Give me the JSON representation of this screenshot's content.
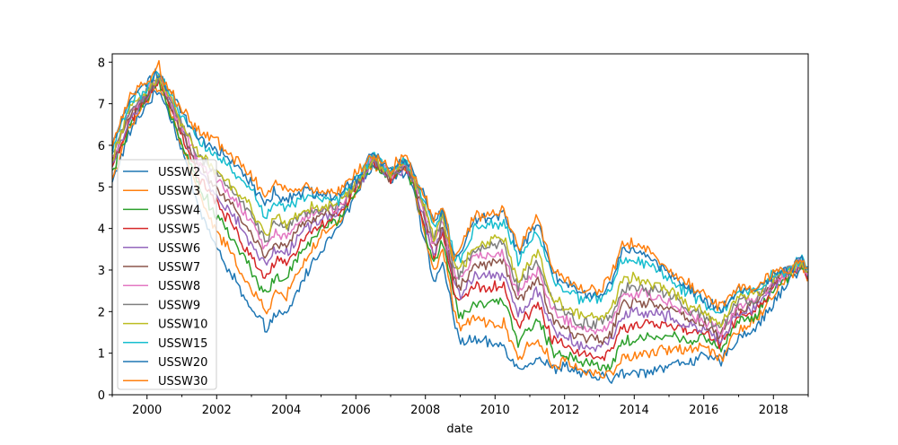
{
  "chart_data": {
    "type": "line",
    "title": "",
    "xlabel": "date",
    "ylabel": "",
    "xlim": [
      "1999-01-01",
      "2019-01-01"
    ],
    "ylim": [
      0,
      8.2
    ],
    "x_ticks": [
      "2000",
      "2002",
      "2004",
      "2006",
      "2008",
      "2010",
      "2012",
      "2014",
      "2016",
      "2018"
    ],
    "y_ticks": [
      "0",
      "1",
      "2",
      "3",
      "4",
      "5",
      "6",
      "7",
      "8"
    ],
    "legend_position": "lower-left",
    "grid": false,
    "x": [
      "1999-01-01",
      "1999-07-01",
      "2000-01-01",
      "2000-05-01",
      "2000-07-01",
      "2001-01-01",
      "2001-07-01",
      "2002-01-01",
      "2002-07-01",
      "2003-01-01",
      "2003-06-01",
      "2003-09-01",
      "2004-01-01",
      "2004-07-01",
      "2005-01-01",
      "2005-07-01",
      "2006-01-01",
      "2006-07-01",
      "2007-01-01",
      "2007-06-01",
      "2007-09-01",
      "2008-01-01",
      "2008-04-01",
      "2008-07-01",
      "2008-11-01",
      "2009-01-01",
      "2009-06-01",
      "2010-01-01",
      "2010-04-01",
      "2010-09-01",
      "2011-01-01",
      "2011-04-01",
      "2011-09-01",
      "2012-01-01",
      "2012-07-01",
      "2013-01-01",
      "2013-05-01",
      "2013-09-01",
      "2014-01-01",
      "2014-07-01",
      "2015-01-01",
      "2015-07-01",
      "2016-01-01",
      "2016-07-01",
      "2017-01-01",
      "2017-07-01",
      "2018-01-01",
      "2018-07-01",
      "2018-11-01",
      "2019-01-01"
    ],
    "series": [
      {
        "name": "USSW2",
        "color": "#1f77b4",
        "values": [
          5.1,
          6.3,
          7.0,
          7.3,
          7.1,
          5.9,
          4.5,
          3.5,
          2.8,
          2.0,
          1.6,
          1.9,
          1.9,
          2.8,
          3.5,
          4.0,
          4.8,
          5.6,
          5.2,
          5.4,
          5.0,
          3.6,
          2.7,
          3.2,
          1.7,
          1.3,
          1.3,
          1.2,
          1.2,
          0.6,
          0.8,
          0.9,
          0.6,
          0.7,
          0.5,
          0.4,
          0.4,
          0.5,
          0.5,
          0.6,
          0.7,
          0.8,
          0.9,
          0.8,
          1.4,
          1.6,
          2.2,
          2.8,
          3.1,
          2.7
        ]
      },
      {
        "name": "USSW3",
        "color": "#ff7f0e",
        "values": [
          5.2,
          6.4,
          7.1,
          7.4,
          7.2,
          6.0,
          4.8,
          3.9,
          3.3,
          2.5,
          2.0,
          2.4,
          2.4,
          3.2,
          3.8,
          4.1,
          4.9,
          5.6,
          5.2,
          5.5,
          5.0,
          3.8,
          2.9,
          3.5,
          2.0,
          1.6,
          1.8,
          1.7,
          1.7,
          0.9,
          1.2,
          1.3,
          0.7,
          0.8,
          0.6,
          0.5,
          0.5,
          0.9,
          0.9,
          1.0,
          1.1,
          1.1,
          1.2,
          0.9,
          1.6,
          1.8,
          2.4,
          2.9,
          3.1,
          2.7
        ]
      },
      {
        "name": "USSW4",
        "color": "#2ca02c",
        "values": [
          5.3,
          6.5,
          7.1,
          7.5,
          7.2,
          6.1,
          5.0,
          4.3,
          3.7,
          3.0,
          2.4,
          2.8,
          2.8,
          3.5,
          4.0,
          4.2,
          4.9,
          5.6,
          5.2,
          5.5,
          5.0,
          3.9,
          3.1,
          3.7,
          2.3,
          1.9,
          2.2,
          2.2,
          2.2,
          1.3,
          1.6,
          1.8,
          1.0,
          1.0,
          0.8,
          0.7,
          0.7,
          1.3,
          1.3,
          1.4,
          1.4,
          1.3,
          1.4,
          1.1,
          1.8,
          1.9,
          2.5,
          2.9,
          3.1,
          2.7
        ]
      },
      {
        "name": "USSW5",
        "color": "#d62728",
        "values": [
          5.4,
          6.6,
          7.2,
          7.5,
          7.3,
          6.2,
          5.2,
          4.6,
          4.0,
          3.3,
          2.8,
          3.2,
          3.1,
          3.8,
          4.1,
          4.3,
          5.0,
          5.6,
          5.2,
          5.5,
          5.1,
          4.0,
          3.3,
          3.9,
          2.5,
          2.2,
          2.6,
          2.6,
          2.6,
          1.6,
          2.0,
          2.2,
          1.3,
          1.2,
          1.0,
          0.9,
          1.0,
          1.6,
          1.7,
          1.7,
          1.7,
          1.5,
          1.5,
          1.2,
          1.9,
          2.0,
          2.6,
          3.0,
          3.1,
          2.7
        ]
      },
      {
        "name": "USSW6",
        "color": "#9467bd",
        "values": [
          5.5,
          6.6,
          7.2,
          7.6,
          7.3,
          6.3,
          5.4,
          4.8,
          4.3,
          3.6,
          3.1,
          3.5,
          3.4,
          4.0,
          4.2,
          4.4,
          5.0,
          5.6,
          5.2,
          5.5,
          5.1,
          4.1,
          3.4,
          4.0,
          2.7,
          2.4,
          2.9,
          2.9,
          2.9,
          1.9,
          2.3,
          2.5,
          1.6,
          1.4,
          1.2,
          1.1,
          1.3,
          1.9,
          2.0,
          2.0,
          1.9,
          1.7,
          1.6,
          1.3,
          2.0,
          2.1,
          2.6,
          3.0,
          3.2,
          2.8
        ]
      },
      {
        "name": "USSW7",
        "color": "#8c564b",
        "values": [
          5.6,
          6.7,
          7.2,
          7.6,
          7.3,
          6.3,
          5.5,
          5.0,
          4.5,
          3.9,
          3.3,
          3.7,
          3.6,
          4.1,
          4.3,
          4.5,
          5.0,
          5.7,
          5.2,
          5.6,
          5.1,
          4.2,
          3.5,
          4.1,
          2.8,
          2.6,
          3.1,
          3.2,
          3.2,
          2.2,
          2.6,
          2.8,
          1.8,
          1.6,
          1.4,
          1.3,
          1.5,
          2.2,
          2.2,
          2.2,
          2.1,
          1.9,
          1.7,
          1.4,
          2.1,
          2.2,
          2.7,
          3.0,
          3.2,
          2.8
        ]
      },
      {
        "name": "USSW8",
        "color": "#e377c2",
        "values": [
          5.6,
          6.8,
          7.3,
          7.7,
          7.4,
          6.4,
          5.6,
          5.2,
          4.7,
          4.1,
          3.5,
          3.9,
          3.8,
          4.3,
          4.4,
          4.5,
          5.1,
          5.7,
          5.3,
          5.6,
          5.2,
          4.3,
          3.6,
          4.2,
          2.9,
          2.8,
          3.3,
          3.4,
          3.4,
          2.4,
          2.8,
          3.0,
          2.0,
          1.8,
          1.6,
          1.5,
          1.7,
          2.4,
          2.4,
          2.4,
          2.2,
          2.0,
          1.8,
          1.5,
          2.2,
          2.3,
          2.7,
          3.0,
          3.2,
          2.8
        ]
      },
      {
        "name": "USSW9",
        "color": "#7f7f7f",
        "values": [
          5.7,
          6.8,
          7.3,
          7.7,
          7.4,
          6.5,
          5.7,
          5.3,
          4.9,
          4.3,
          3.7,
          4.1,
          4.0,
          4.4,
          4.4,
          4.6,
          5.1,
          5.7,
          5.3,
          5.6,
          5.2,
          4.4,
          3.7,
          4.3,
          3.0,
          2.9,
          3.5,
          3.6,
          3.6,
          2.6,
          3.0,
          3.2,
          2.2,
          2.0,
          1.7,
          1.7,
          1.9,
          2.6,
          2.6,
          2.5,
          2.4,
          2.1,
          1.9,
          1.6,
          2.3,
          2.3,
          2.8,
          3.0,
          3.2,
          2.8
        ]
      },
      {
        "name": "USSW10",
        "color": "#bcbd22",
        "values": [
          5.7,
          6.9,
          7.3,
          7.7,
          7.4,
          6.5,
          5.8,
          5.4,
          5.0,
          4.5,
          3.8,
          4.3,
          4.1,
          4.5,
          4.5,
          4.6,
          5.1,
          5.7,
          5.3,
          5.6,
          5.2,
          4.5,
          3.8,
          4.3,
          3.1,
          3.0,
          3.6,
          3.7,
          3.8,
          2.7,
          3.2,
          3.4,
          2.3,
          2.1,
          1.9,
          1.8,
          2.0,
          2.8,
          2.8,
          2.7,
          2.5,
          2.2,
          2.0,
          1.7,
          2.4,
          2.4,
          2.8,
          3.0,
          3.2,
          2.8
        ]
      },
      {
        "name": "USSW15",
        "color": "#17becf",
        "values": [
          5.9,
          7.0,
          7.4,
          7.8,
          7.5,
          6.7,
          6.1,
          5.8,
          5.4,
          4.9,
          4.3,
          4.7,
          4.5,
          4.8,
          4.7,
          4.7,
          5.2,
          5.8,
          5.4,
          5.7,
          5.3,
          4.6,
          4.0,
          4.5,
          3.3,
          3.3,
          4.0,
          4.1,
          4.2,
          3.2,
          3.7,
          3.9,
          2.8,
          2.5,
          2.3,
          2.3,
          2.5,
          3.3,
          3.3,
          3.1,
          2.8,
          2.5,
          2.2,
          1.9,
          2.5,
          2.5,
          2.9,
          3.0,
          3.3,
          2.9
        ]
      },
      {
        "name": "USSW20",
        "color": "#1f77b4",
        "values": [
          6.0,
          7.1,
          7.5,
          7.8,
          7.5,
          6.8,
          6.2,
          5.9,
          5.6,
          5.1,
          4.5,
          4.9,
          4.7,
          4.9,
          4.8,
          4.8,
          5.2,
          5.8,
          5.4,
          5.7,
          5.3,
          4.7,
          4.1,
          4.5,
          3.3,
          3.4,
          4.2,
          4.3,
          4.4,
          3.4,
          3.9,
          4.1,
          2.9,
          2.7,
          2.4,
          2.4,
          2.7,
          3.5,
          3.5,
          3.3,
          2.9,
          2.6,
          2.3,
          2.0,
          2.6,
          2.5,
          2.9,
          3.0,
          3.3,
          2.9
        ]
      },
      {
        "name": "USSW30",
        "color": "#ff7f0e",
        "values": [
          6.0,
          7.2,
          7.5,
          7.9,
          7.5,
          6.9,
          6.3,
          6.1,
          5.7,
          5.3,
          4.7,
          5.1,
          4.9,
          5.0,
          4.9,
          4.9,
          5.3,
          5.8,
          5.4,
          5.8,
          5.3,
          4.7,
          4.2,
          4.6,
          3.2,
          3.5,
          4.3,
          4.4,
          4.5,
          3.5,
          4.0,
          4.3,
          3.0,
          2.8,
          2.5,
          2.5,
          2.8,
          3.7,
          3.6,
          3.4,
          3.0,
          2.7,
          2.4,
          2.1,
          2.6,
          2.6,
          2.9,
          3.0,
          3.3,
          2.9
        ]
      }
    ]
  }
}
